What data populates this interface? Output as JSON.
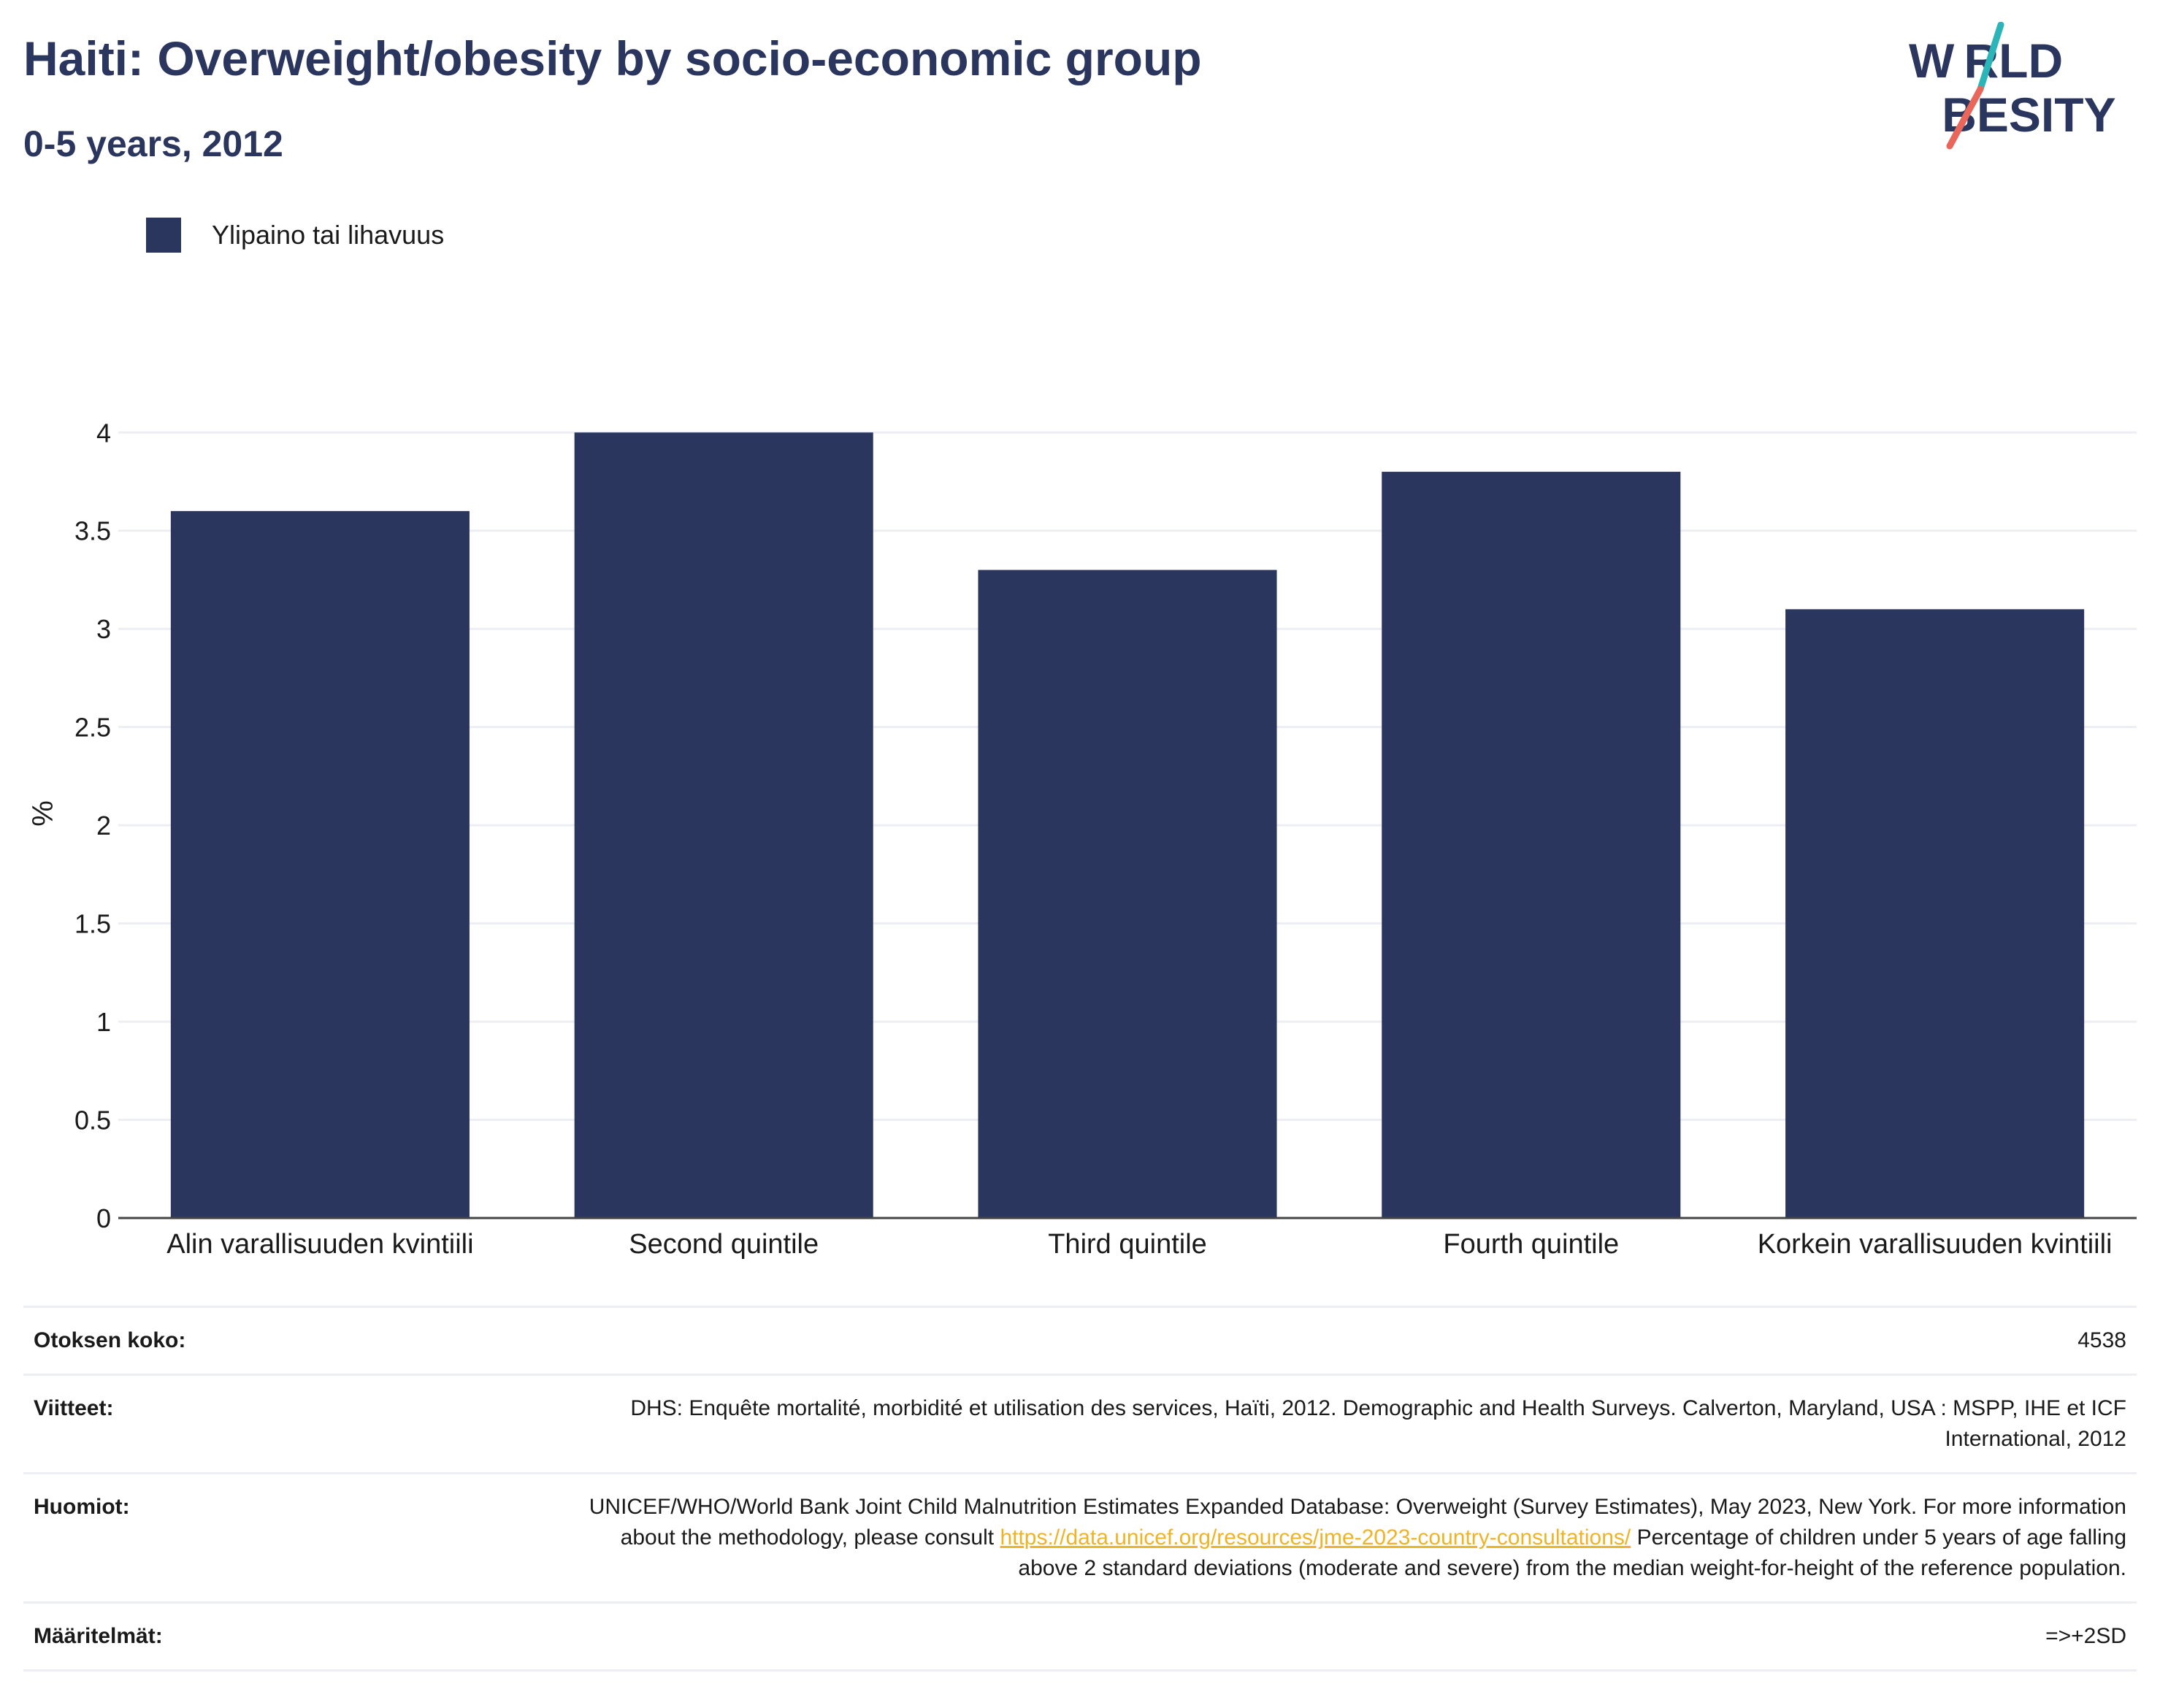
{
  "header": {
    "title": "Haiti: Overweight/obesity by socio-economic group",
    "subtitle": "0-5 years, 2012"
  },
  "logo": {
    "line1": "W RLD",
    "line2": " BESITY",
    "accent_colors": [
      "#2bb5b8",
      "#e8665a"
    ]
  },
  "legend": {
    "label": "Ylipaino tai lihavuus",
    "color": "#2b365f"
  },
  "chart_data": {
    "type": "bar",
    "categories": [
      "Alin varallisuuden kvintiili",
      "Second quintile",
      "Third quintile",
      "Fourth quintile",
      "Korkein varallisuuden kvintiili"
    ],
    "series": [
      {
        "name": "Ylipaino tai lihavuus",
        "values": [
          3.6,
          4.0,
          3.3,
          3.8,
          3.1
        ],
        "color": "#2b365f"
      }
    ],
    "ylabel": "%",
    "ylim": [
      0,
      4.12
    ],
    "yticks": [
      0,
      0.5,
      1,
      1.5,
      2,
      2.5,
      3,
      3.5,
      4
    ],
    "ytick_labels": [
      "0",
      "0.5",
      "1",
      "1.5",
      "2",
      "2.5",
      "3",
      "3.5",
      "4"
    ],
    "grid": true
  },
  "info": {
    "sample_label": "Otoksen koko:",
    "sample_value": "4538",
    "refs_label": "Viitteet:",
    "refs_value": "DHS: Enquête mortalité, morbidité et utilisation des services, Haïti, 2012. Demographic and Health Surveys. Calverton, Maryland, USA : MSPP, IHE et ICF International, 2012",
    "notes_label": "Huomiot:",
    "notes_text1": "UNICEF/WHO/World Bank Joint Child Malnutrition Estimates Expanded Database: Overweight (Survey Estimates), May 2023, New York. For more information about the methodology, please consult ",
    "notes_link": "https://data.unicef.org/resources/jme-2023-country-consultations/",
    "notes_text2": " Percentage of children under 5 years of age falling above 2 standard deviations (moderate and severe) from the median weight-for-height of the reference population.",
    "defs_label": "Määritelmät:",
    "defs_value": "=>+2SD"
  }
}
